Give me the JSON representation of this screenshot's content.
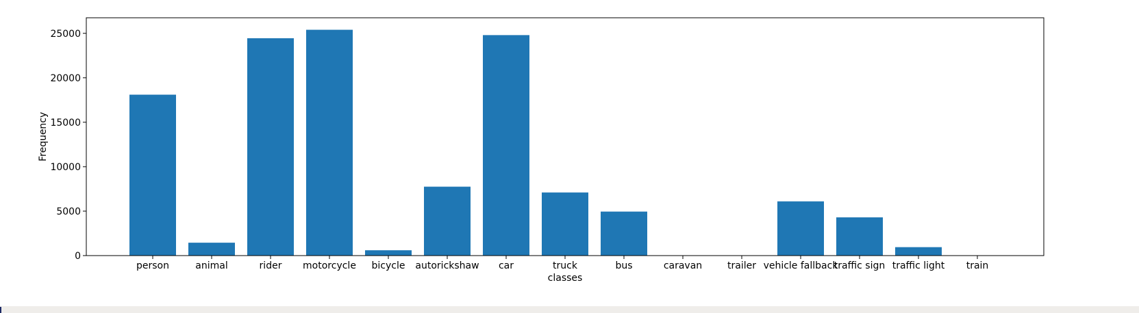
{
  "chart_data": {
    "type": "bar",
    "categories": [
      "person",
      "animal",
      "rider",
      "motorcycle",
      "bicycle",
      "autorickshaw",
      "car",
      "truck",
      "bus",
      "caravan",
      "trailer",
      "vehicle fallback",
      "traffic sign",
      "traffic light",
      "train"
    ],
    "values": [
      18100,
      1450,
      24450,
      25400,
      600,
      7750,
      24800,
      7100,
      4950,
      0,
      0,
      6100,
      4300,
      950,
      0
    ],
    "xlabel": "classes",
    "ylabel": "Frequency",
    "ylim": [
      0,
      26750
    ],
    "yticks": [
      0,
      5000,
      10000,
      15000,
      20000,
      25000
    ],
    "grid": false,
    "bar_color": "#1f77b4"
  }
}
